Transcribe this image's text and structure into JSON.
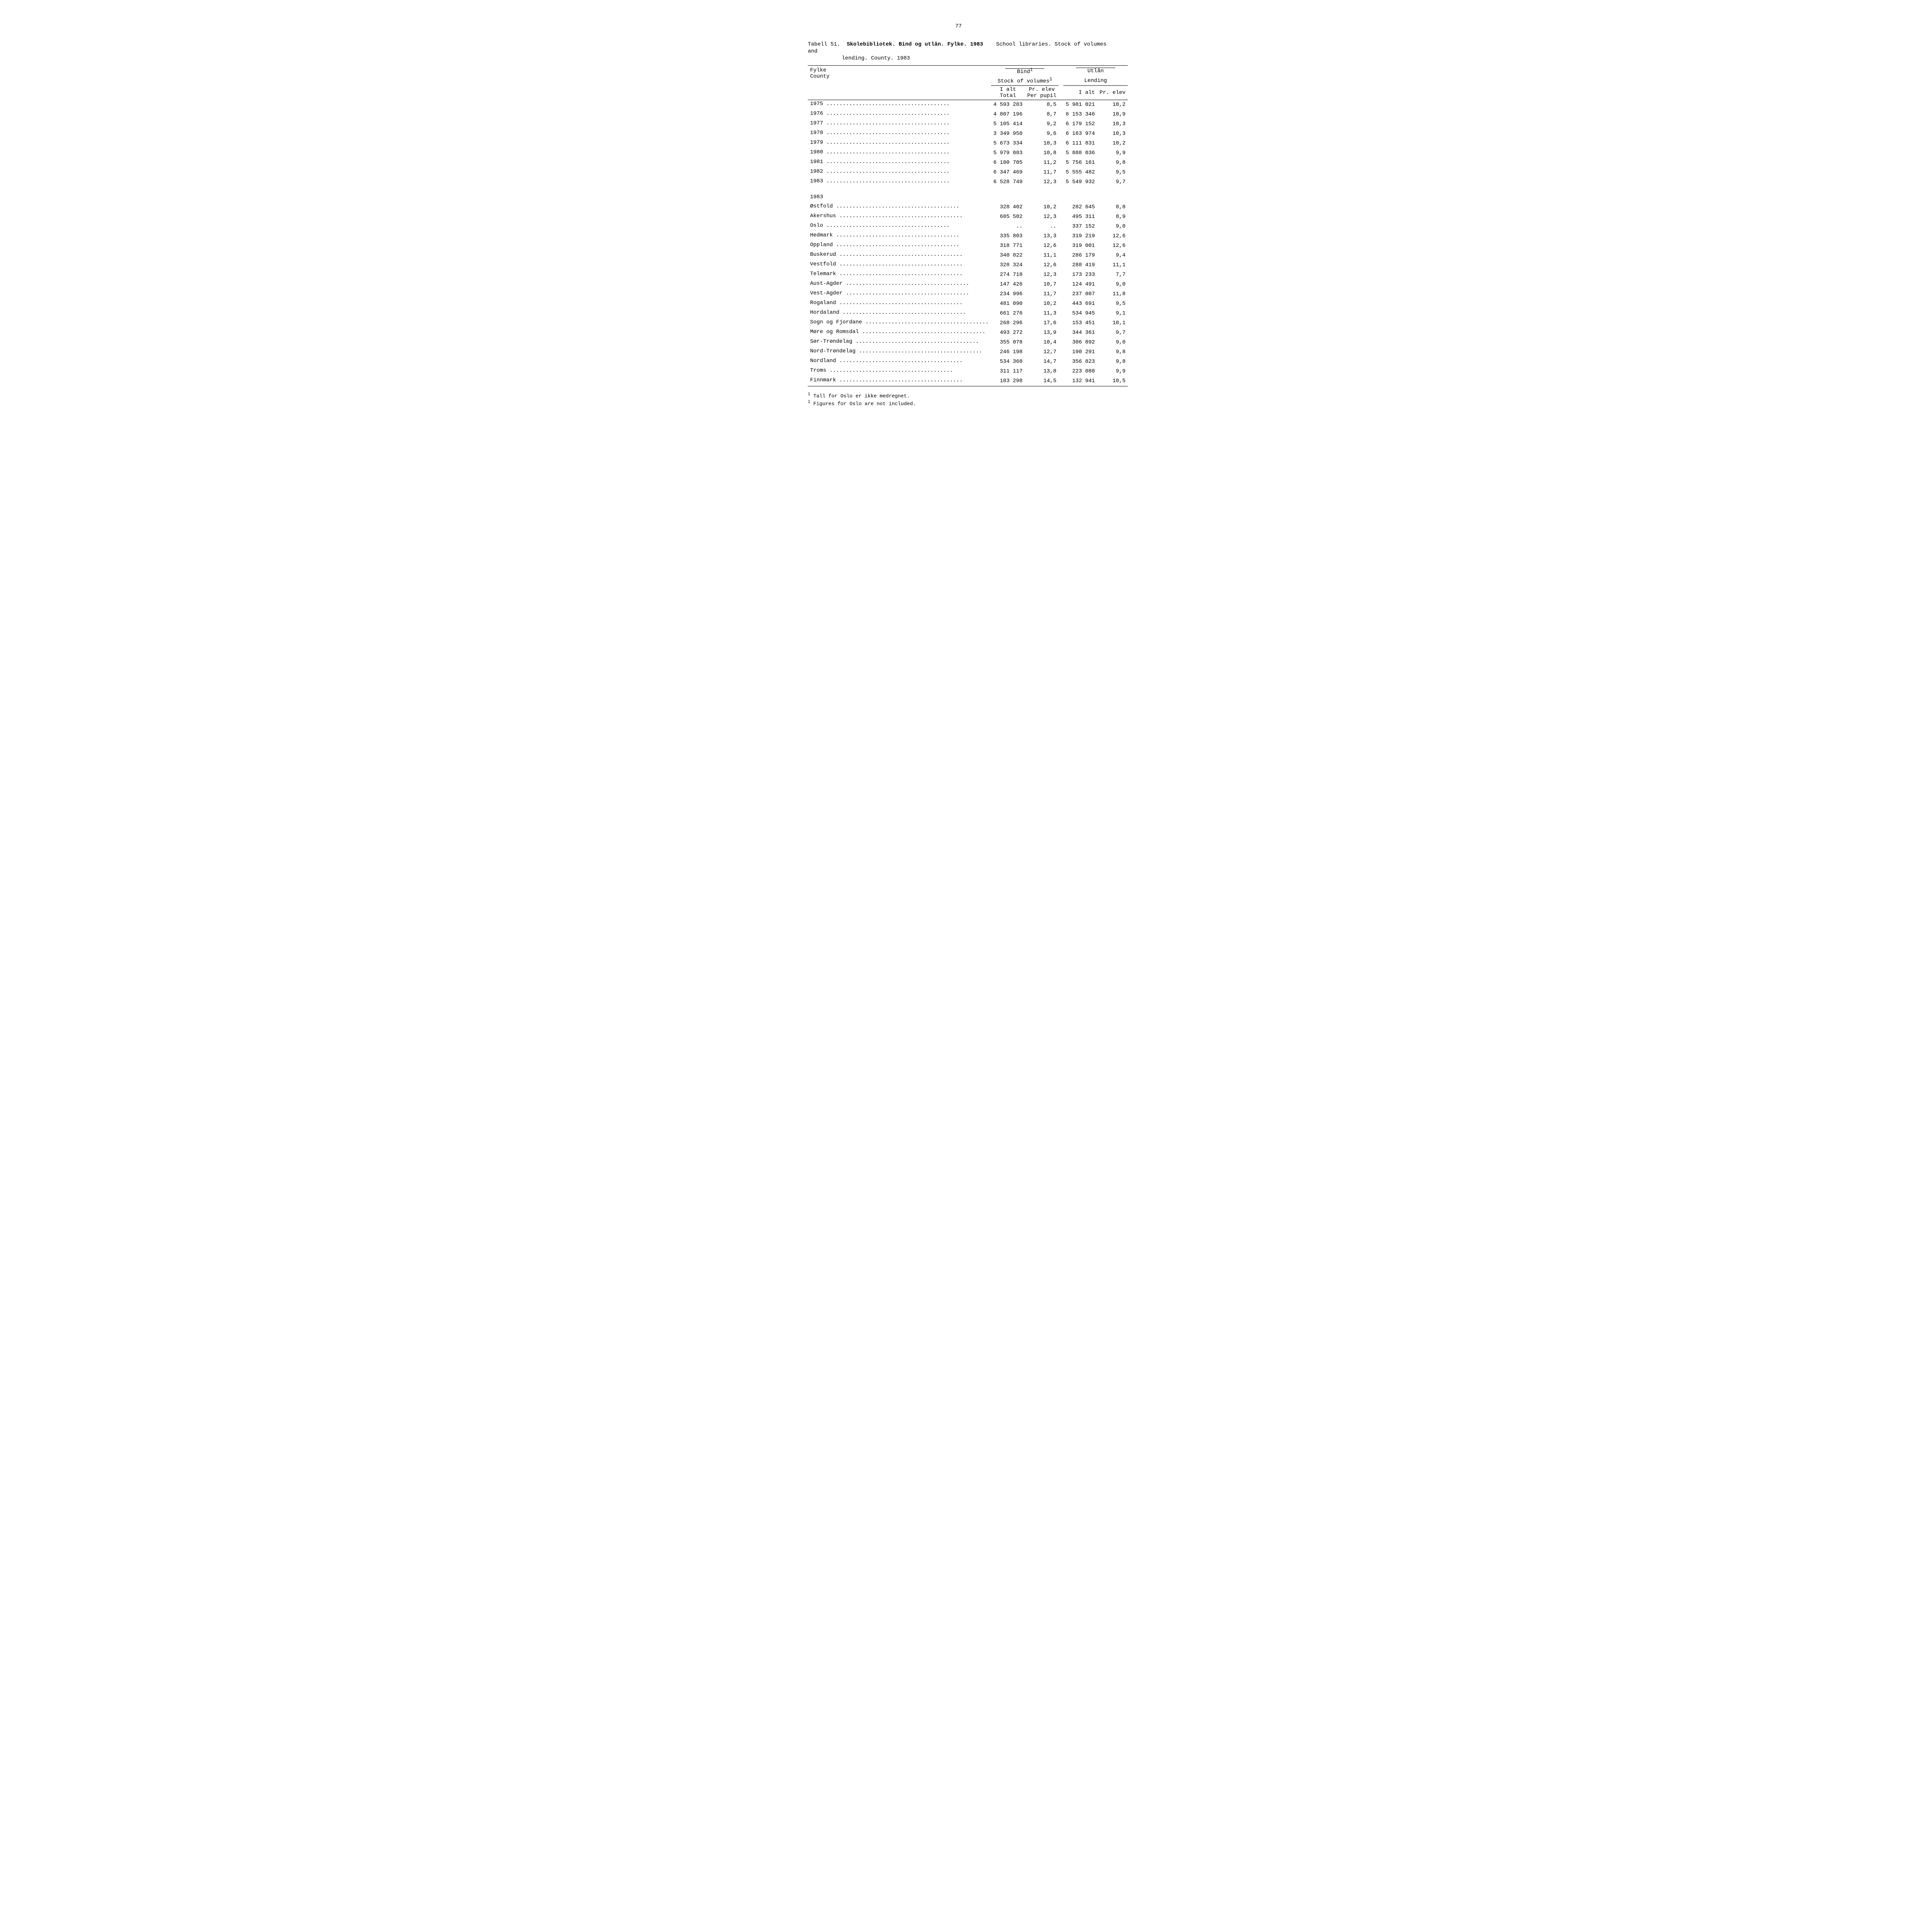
{
  "page_number": "77",
  "caption": {
    "prefix": "Tabell 51.",
    "line1_bold": "Skolebibliotek.  Bind og utlån.  Fylke.  1983",
    "line1_italic": "School libraries.  Stock of volumes and",
    "line2_italic": "lending.  County.  1983"
  },
  "headers": {
    "fylke": "Fylke",
    "county": "County",
    "bind": "Bind",
    "bind_sup": "1",
    "stock": "Stock of volumes",
    "stock_sup": "1",
    "utlan": "Utlån",
    "lending": "Lending",
    "ialt": "I alt",
    "total": "Total",
    "prelev": "Pr. elev",
    "perpupil": "Per pupil",
    "ialt2": "I alt",
    "prelev2": "Pr. elev"
  },
  "years": [
    {
      "label": "1975",
      "c1": "4 593 283",
      "c2": "8,5",
      "c3": "5 981 021",
      "c4": "10,2"
    },
    {
      "label": "1976",
      "c1": "4 807 196",
      "c2": "8,7",
      "c3": "6 153 346",
      "c4": "10,9"
    },
    {
      "label": "1977",
      "c1": "5 105 414",
      "c2": "9,2",
      "c3": "6 179 152",
      "c4": "10,3"
    },
    {
      "label": "1978",
      "c1": "3 349 950",
      "c2": "9,6",
      "c3": "6 163 974",
      "c4": "10,3"
    },
    {
      "label": "1979",
      "c1": "5 673 334",
      "c2": "10,3",
      "c3": "6 111 831",
      "c4": "10,2"
    },
    {
      "label": "1980",
      "c1": "5 979 083",
      "c2": "10,8",
      "c3": "5 888 036",
      "c4": "9,9"
    },
    {
      "label": "1981",
      "c1": "6 180 705",
      "c2": "11,2",
      "c3": "5 756 161",
      "c4": "9,8"
    },
    {
      "label": "1982",
      "c1": "6 347 469",
      "c2": "11,7",
      "c3": "5 555 482",
      "c4": "9,5"
    },
    {
      "label": "1983",
      "c1": "6 528 749",
      "c2": "12,3",
      "c3": "5 549 932",
      "c4": "9,7"
    }
  ],
  "section_label": "1983",
  "counties": [
    {
      "label": "Østfold",
      "c1": "328 402",
      "c2": "10,2",
      "c3": "282 645",
      "c4": "8,8"
    },
    {
      "label": "Akershus",
      "c1": "685 502",
      "c2": "12,3",
      "c3": "495 311",
      "c4": "8,9"
    },
    {
      "label": "Oslo",
      "c1": "..",
      "c2": "..",
      "c3": "337 152",
      "c4": "9,0"
    },
    {
      "label": "Hedmark",
      "c1": "335 803",
      "c2": "13,3",
      "c3": "319 219",
      "c4": "12,6"
    },
    {
      "label": "Oppland",
      "c1": "318 771",
      "c2": "12,6",
      "c3": "319 001",
      "c4": "12,6"
    },
    {
      "label": "Buskerud",
      "c1": "340 822",
      "c2": "11,1",
      "c3": "286 179",
      "c4": "9,4"
    },
    {
      "label": "Vestfold",
      "c1": "328 324",
      "c2": "12,6",
      "c3": "288 419",
      "c4": "11,1"
    },
    {
      "label": "Telemark",
      "c1": "274 718",
      "c2": "12,3",
      "c3": "173 233",
      "c4": "7,7"
    },
    {
      "label": "Aust-Agder",
      "c1": "147 426",
      "c2": "10,7",
      "c3": "124 491",
      "c4": "9,0"
    },
    {
      "label": "Vest-Agder",
      "c1": "234 996",
      "c2": "11,7",
      "c3": "237 807",
      "c4": "11,8"
    },
    {
      "label": "Rogaland",
      "c1": "481 090",
      "c2": "10,2",
      "c3": "443 691",
      "c4": "9,5"
    },
    {
      "label": "Hordaland",
      "c1": "661 276",
      "c2": "11,3",
      "c3": "534 945",
      "c4": "9,1"
    },
    {
      "label": "Sogn og Fjordane",
      "c1": "268 296",
      "c2": "17,6",
      "c3": "153 451",
      "c4": "10,1"
    },
    {
      "label": "Møre og Romsdal",
      "c1": "493 272",
      "c2": "13,9",
      "c3": "344 361",
      "c4": "9,7"
    },
    {
      "label": "Sør-Trøndelag",
      "c1": "355 078",
      "c2": "10,4",
      "c3": "306 892",
      "c4": "9,0"
    },
    {
      "label": "Nord-Trøndelag",
      "c1": "246 198",
      "c2": "12,7",
      "c3": "190 291",
      "c4": "9,8"
    },
    {
      "label": "Nordland",
      "c1": "534 360",
      "c2": "14,7",
      "c3": "356 823",
      "c4": "9,8"
    },
    {
      "label": "Troms",
      "c1": "311 117",
      "c2": "13,8",
      "c3": "223 080",
      "c4": "9,9"
    },
    {
      "label": "Finnmark",
      "c1": "183 298",
      "c2": "14,5",
      "c3": "132 941",
      "c4": "10,5"
    }
  ],
  "footnotes": {
    "f1_no": "Tall for Oslo er ikke medregnet.",
    "f1_en": "Figures for Oslo are not included."
  },
  "leader_dots": " ......................................"
}
